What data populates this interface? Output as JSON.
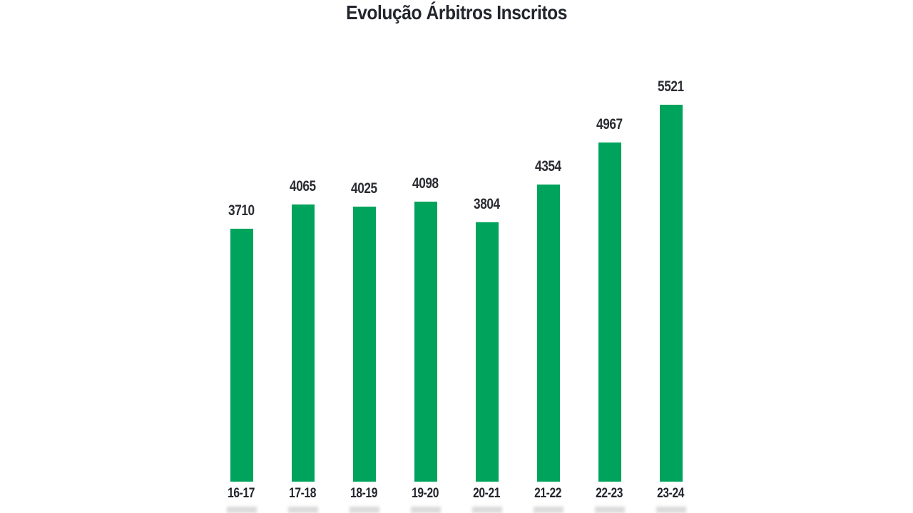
{
  "chart_data": {
    "type": "bar",
    "title": "Evolução Árbitros Inscritos",
    "categories": [
      "16-17",
      "17-18",
      "18-19",
      "19-20",
      "20-21",
      "21-22",
      "22-23",
      "23-24"
    ],
    "values": [
      3710,
      4065,
      4025,
      4098,
      3804,
      4354,
      4967,
      5521
    ],
    "xlabel": "",
    "ylabel": "",
    "ylim": [
      0,
      5650
    ],
    "grid": false,
    "legend": false,
    "axes_visible": false,
    "data_labels": true,
    "bar_color": "#00a35c",
    "title_color": "#23252c",
    "label_color": "#2a2c31"
  }
}
